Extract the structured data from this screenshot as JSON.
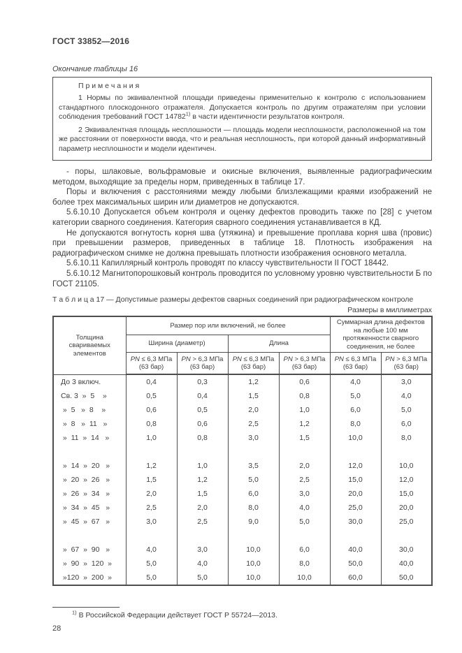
{
  "header": {
    "code": "ГОСТ 33852—2016",
    "page_number": "28"
  },
  "table16": {
    "continuation": "Окончание таблицы 16"
  },
  "notes": {
    "title": "П р и м е ч а н и я",
    "note1_before": "1 Нормы по эквивалентной площади приведены применительно к контролю с использованием стандартного плоскодонного отражателя. Допускается контроль по другим отражателям при условии соблюдения требований ГОСТ 14782",
    "note1_sup": "1)",
    "note1_after": " в части идентичности результатов контроля.",
    "note2": "2 Эквивалентная площадь несплошности — площадь модели несплошности, расположенной на том же расстоянии от поверхности ввода, что и реальная несплошность, при которой данный информативный параметр несплошности и модели идентичен."
  },
  "paragraphs": [
    "- поры, шлаковые, вольфрамовые и окисные включения, выявленные радиографическим методом, выходящие за пределы норм, приведенных в таблице 17.",
    "Поры и включения с расстояниями между любыми близлежащими краями изображений не более трех максимальных ширин или диаметров не допускаются.",
    "5.6.10.10 Допускается объем контроля и оценку дефектов проводить также по [28] с учетом категории сварного соединения. Категория сварного соединения устанавливается в КД.",
    "Не допускаются вогнутость корня шва (утяжина) и превышение проплава корня шва (провис) при превышении размеров, приведенных в таблице 18. Плотность изображения на радиографическом снимке не должна превышать плотности изображения основного металла.",
    "5.6.10.11 Капиллярный контроль проводят по классу чувствительности II ГОСТ 18442.",
    "5.6.10.12 Магнитопорошковый контроль проводится по условному уровню чувствительности Б по ГОСТ 21105."
  ],
  "table17": {
    "caption": "Т а б л и ц а  17 — Допустимые размеры дефектов сварных соединений при радиографическом контроле",
    "units_note": "Размеры в миллиметрах",
    "headers": {
      "thickness": "Толщина свариваемых элементов",
      "size_group": "Размер пор или включений, не более",
      "width_group": "Ширина (диаметр)",
      "length_group": "Длина",
      "total_group": "Суммарная длина дефектов на любые 100 мм протяженности сварного соединения, не более",
      "pn_sym": "PN",
      "cond_low": " ≤ 6,3 МПа",
      "cond_high": " > 6,3 МПа",
      "bar": "(63 бар)"
    },
    "row_groups": [
      [
        {
          "label": "До 3 включ.",
          "values": [
            "0,4",
            "0,3",
            "1,2",
            "0,6",
            "4,0",
            "3,0"
          ]
        },
        {
          "label": "Св. 3  »  5    »",
          "values": [
            "0,5",
            "0,4",
            "1,5",
            "0,8",
            "5,0",
            "4,0"
          ]
        },
        {
          "label": " »  5   »  8    »",
          "values": [
            "0,6",
            "0,5",
            "2,0",
            "1,0",
            "6,0",
            "5,0"
          ]
        },
        {
          "label": " »  8   »  11   »",
          "values": [
            "0,8",
            "0,6",
            "2,5",
            "1,2",
            "8,0",
            "6,0"
          ]
        },
        {
          "label": " »  11  »  14   »",
          "values": [
            "1,0",
            "0,8",
            "3,0",
            "1,5",
            "10,0",
            "8,0"
          ]
        }
      ],
      [
        {
          "label": " »  14  »  20   »",
          "values": [
            "1,2",
            "1,0",
            "3,5",
            "2,0",
            "12,0",
            "10,0"
          ]
        },
        {
          "label": " »  20  »  26   »",
          "values": [
            "1,5",
            "1,2",
            "5,0",
            "2,5",
            "15,0",
            "12,0"
          ]
        },
        {
          "label": " »  26  »  34   »",
          "values": [
            "2,0",
            "1,5",
            "6,0",
            "3,0",
            "20,0",
            "15,0"
          ]
        },
        {
          "label": " »  34  »  45   »",
          "values": [
            "2,5",
            "2,0",
            "8,0",
            "4,0",
            "25,0",
            "20,0"
          ]
        },
        {
          "label": " »  45  »  67   »",
          "values": [
            "3,0",
            "2,5",
            "9,0",
            "5,0",
            "30,0",
            "25,0"
          ]
        }
      ],
      [
        {
          "label": " »  67  »  90   »",
          "values": [
            "4,0",
            "3,0",
            "10,0",
            "6,0",
            "40,0",
            "30,0"
          ]
        },
        {
          "label": " »  90  »  120  »",
          "values": [
            "5,0",
            "4,0",
            "10,0",
            "8,0",
            "50,0",
            "40,0"
          ]
        },
        {
          "label": " »120  »  200  »",
          "values": [
            "5,0",
            "5,0",
            "10,0",
            "10,0",
            "60,0",
            "50,0"
          ]
        }
      ]
    ]
  },
  "footnote": {
    "sup": "1)",
    "text": " В Российской Федерации действует ГОСТ Р 55724—2013."
  }
}
